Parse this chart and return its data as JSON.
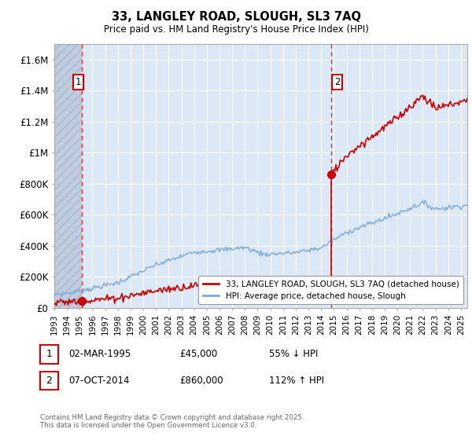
{
  "title": "33, LANGLEY ROAD, SLOUGH, SL3 7AQ",
  "subtitle": "Price paid vs. HM Land Registry's House Price Index (HPI)",
  "ylim": [
    0,
    1700000
  ],
  "yticks": [
    0,
    200000,
    400000,
    600000,
    800000,
    1000000,
    1200000,
    1400000,
    1600000
  ],
  "ytick_labels": [
    "£0",
    "£200K",
    "£400K",
    "£600K",
    "£800K",
    "£1M",
    "£1.2M",
    "£1.4M",
    "£1.6M"
  ],
  "sale_dates": [
    1995.17,
    2014.77
  ],
  "sale_prices": [
    45000,
    860000
  ],
  "sale_labels": [
    "1",
    "2"
  ],
  "hpi_color": "#7aaadd",
  "sale_color": "#cc0000",
  "dashed_color": "#dd3333",
  "background_plot": "#dce8f5",
  "hatch_color": "#c0cce0",
  "legend_label_sale": "33, LANGLEY ROAD, SLOUGH, SL3 7AQ (detached house)",
  "legend_label_hpi": "HPI: Average price, detached house, Slough",
  "footnote": "Contains HM Land Registry data © Crown copyright and database right 2025.\nThis data is licensed under the Open Government Licence v3.0.",
  "xmin": 1993,
  "xmax": 2025.5,
  "ann1_date": "02-MAR-1995",
  "ann1_price": "£45,000",
  "ann1_pct": "55% ↓ HPI",
  "ann2_date": "07-OCT-2014",
  "ann2_price": "£860,000",
  "ann2_pct": "112% ↑ HPI"
}
